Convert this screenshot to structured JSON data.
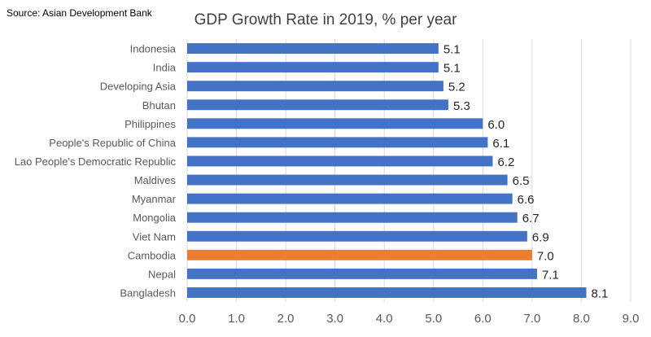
{
  "source": "Source: Asian Development Bank",
  "colors": {
    "bar": "#4472C4",
    "highlight": "#ED7D31",
    "axis_text": "#595959",
    "label_text": "#262626",
    "grid": "#D9D9D9"
  },
  "chart_data": {
    "type": "bar",
    "orientation": "horizontal",
    "title": "GDP Growth Rate in 2019, % per year",
    "xlabel": "",
    "ylabel": "",
    "xlim": [
      0,
      9
    ],
    "x_ticks": [
      "0.0",
      "1.0",
      "2.0",
      "3.0",
      "4.0",
      "5.0",
      "6.0",
      "7.0",
      "8.0",
      "9.0"
    ],
    "grid": "vertical",
    "highlight_category": "Cambodia",
    "categories": [
      "Indonesia",
      "India",
      "Developing Asia",
      "Bhutan",
      "Philippines",
      "People's Republic of China",
      "Lao People's Democratic Republic",
      "Maldives",
      "Myanmar",
      "Mongolia",
      "Viet Nam",
      "Cambodia",
      "Nepal",
      "Bangladesh"
    ],
    "values": [
      5.1,
      5.1,
      5.2,
      5.3,
      6.0,
      6.1,
      6.2,
      6.5,
      6.6,
      6.7,
      6.9,
      7.0,
      7.1,
      8.1
    ],
    "value_labels": [
      "5.1",
      "5.1",
      "5.2",
      "5.3",
      "6.0",
      "6.1",
      "6.2",
      "6.5",
      "6.6",
      "6.7",
      "6.9",
      "7.0",
      "7.1",
      "8.1"
    ]
  }
}
